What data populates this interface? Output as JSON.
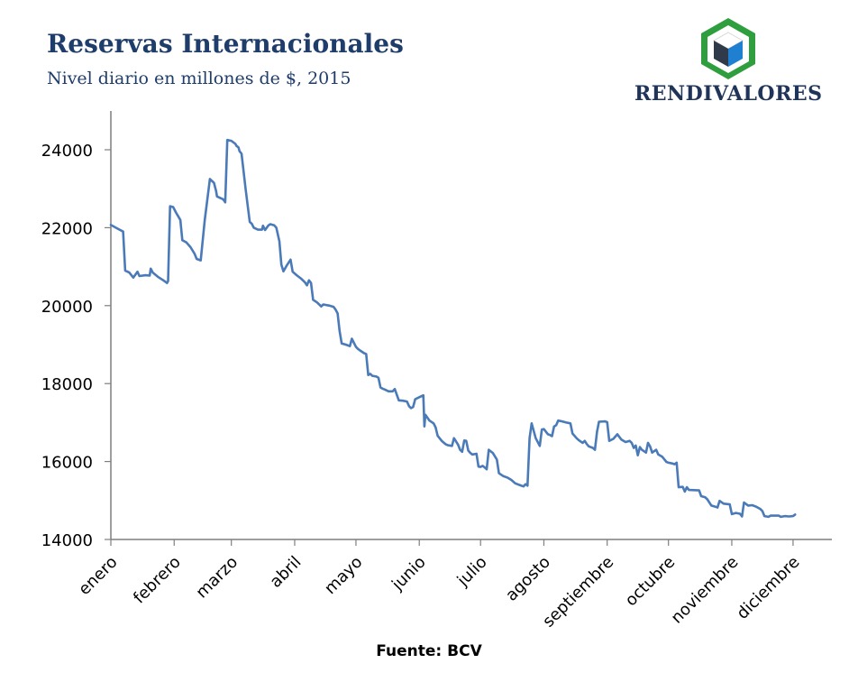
{
  "header": {
    "title": "Reservas Internacionales",
    "subtitle": "Nivel diario en millones de $, 2015",
    "brand": "RENDIVALORES",
    "logo_icon": "cube-logo-icon"
  },
  "footer": {
    "source": "Fuente: BCV"
  },
  "colors": {
    "line": "#4a7ab8",
    "title": "#1f3d6b",
    "logo_green": "#2e9e3e",
    "logo_blue": "#1f7fd1",
    "logo_dark": "#2f3a4a"
  },
  "chart_data": {
    "type": "line",
    "title": "",
    "xlabel": "",
    "ylabel": "",
    "ylim": [
      14000,
      25000
    ],
    "yticks": [
      14000,
      16000,
      18000,
      20000,
      22000,
      24000
    ],
    "grid": false,
    "legend": "none",
    "x_tick_labels": [
      "enero",
      "febrero",
      "marzo",
      "abril",
      "mayo",
      "junio",
      "julio",
      "agosto",
      "septiembre",
      "octubre",
      "noviembre",
      "diciembre"
    ],
    "x_tick_positions": [
      0,
      31,
      59,
      90,
      120,
      151,
      181,
      212,
      243,
      273,
      304,
      334
    ],
    "x_max": 353,
    "series": [
      {
        "name": "",
        "points": [
          [
            0,
            22070
          ],
          [
            6,
            21900
          ],
          [
            7,
            20900
          ],
          [
            9,
            20850
          ],
          [
            11,
            20720
          ],
          [
            13,
            20870
          ],
          [
            14,
            20760
          ],
          [
            17,
            20780
          ],
          [
            19,
            20770
          ],
          [
            19.5,
            20950
          ],
          [
            20.5,
            20850
          ],
          [
            23,
            20740
          ],
          [
            26,
            20640
          ],
          [
            27.5,
            20580
          ],
          [
            28,
            20630
          ],
          [
            29,
            22550
          ],
          [
            30.5,
            22530
          ],
          [
            32,
            22380
          ],
          [
            34,
            22200
          ],
          [
            35,
            21680
          ],
          [
            37,
            21620
          ],
          [
            39,
            21500
          ],
          [
            41,
            21330
          ],
          [
            42,
            21200
          ],
          [
            44,
            21160
          ],
          [
            46,
            22200
          ],
          [
            48.5,
            23250
          ],
          [
            50.5,
            23150
          ],
          [
            51.5,
            22950
          ],
          [
            52,
            22800
          ],
          [
            55,
            22730
          ],
          [
            56,
            22650
          ],
          [
            57,
            24250
          ],
          [
            59,
            24230
          ],
          [
            61,
            24150
          ],
          [
            61.5,
            24100
          ],
          [
            62.5,
            24060
          ],
          [
            63,
            23960
          ],
          [
            64,
            23900
          ],
          [
            66,
            22980
          ],
          [
            68,
            22150
          ],
          [
            69,
            22100
          ],
          [
            70,
            22000
          ],
          [
            72,
            21950
          ],
          [
            74,
            21950
          ],
          [
            74.5,
            22050
          ],
          [
            75.5,
            21940
          ],
          [
            77,
            22050
          ],
          [
            78,
            22090
          ],
          [
            80,
            22060
          ],
          [
            81,
            22000
          ],
          [
            82.5,
            21650
          ],
          [
            83.5,
            21050
          ],
          [
            84.5,
            20880
          ],
          [
            86,
            21020
          ],
          [
            88,
            21180
          ],
          [
            89,
            20870
          ],
          [
            91,
            20780
          ],
          [
            93,
            20700
          ],
          [
            95,
            20600
          ],
          [
            96,
            20520
          ],
          [
            97,
            20650
          ],
          [
            98,
            20580
          ],
          [
            99,
            20150
          ],
          [
            101,
            20080
          ],
          [
            103,
            19980
          ],
          [
            104,
            20030
          ],
          [
            107,
            20000
          ],
          [
            109,
            19970
          ],
          [
            110,
            19900
          ],
          [
            111,
            19800
          ],
          [
            112,
            19350
          ],
          [
            113,
            19030
          ],
          [
            115,
            19000
          ],
          [
            117,
            18960
          ],
          [
            118,
            19150
          ],
          [
            120,
            18940
          ],
          [
            121,
            18890
          ],
          [
            122,
            18850
          ],
          [
            124,
            18780
          ],
          [
            125,
            18760
          ],
          [
            126,
            18220
          ],
          [
            127,
            18250
          ],
          [
            128,
            18200
          ],
          [
            130,
            18180
          ],
          [
            131,
            18150
          ],
          [
            132,
            17900
          ],
          [
            133,
            17870
          ],
          [
            134,
            17850
          ],
          [
            136,
            17800
          ],
          [
            138,
            17800
          ],
          [
            139,
            17860
          ],
          [
            141,
            17570
          ],
          [
            143,
            17560
          ],
          [
            145,
            17540
          ],
          [
            146,
            17420
          ],
          [
            147,
            17370
          ],
          [
            148,
            17400
          ],
          [
            149,
            17600
          ],
          [
            151,
            17650
          ],
          [
            153,
            17700
          ],
          [
            153.5,
            16900
          ],
          [
            154,
            17200
          ],
          [
            156,
            17050
          ],
          [
            158,
            16980
          ],
          [
            159,
            16880
          ],
          [
            160,
            16660
          ],
          [
            162,
            16530
          ],
          [
            164,
            16440
          ],
          [
            165,
            16420
          ],
          [
            167,
            16400
          ],
          [
            168,
            16600
          ],
          [
            170,
            16430
          ],
          [
            171,
            16300
          ],
          [
            172,
            16250
          ],
          [
            173,
            16540
          ],
          [
            174,
            16530
          ],
          [
            175,
            16280
          ],
          [
            176,
            16220
          ],
          [
            177,
            16180
          ],
          [
            179,
            16200
          ],
          [
            180,
            15870
          ],
          [
            181,
            15860
          ],
          [
            182,
            15890
          ],
          [
            183,
            15850
          ],
          [
            184,
            15800
          ],
          [
            185,
            16300
          ],
          [
            187,
            16220
          ],
          [
            189,
            16050
          ],
          [
            190,
            15700
          ],
          [
            192,
            15630
          ],
          [
            194,
            15590
          ],
          [
            196,
            15530
          ],
          [
            198,
            15440
          ],
          [
            201,
            15380
          ],
          [
            202,
            15360
          ],
          [
            203,
            15420
          ],
          [
            204,
            15380
          ],
          [
            205,
            16600
          ],
          [
            206,
            16980
          ],
          [
            208,
            16600
          ],
          [
            210,
            16400
          ],
          [
            211,
            16820
          ],
          [
            212,
            16830
          ],
          [
            214,
            16700
          ],
          [
            215,
            16680
          ],
          [
            216,
            16650
          ],
          [
            217,
            16900
          ],
          [
            218,
            16930
          ],
          [
            219,
            17050
          ],
          [
            221,
            17030
          ],
          [
            223,
            17000
          ],
          [
            225,
            16980
          ],
          [
            226,
            16720
          ],
          [
            228,
            16600
          ],
          [
            229,
            16550
          ],
          [
            231,
            16480
          ],
          [
            232,
            16530
          ],
          [
            233,
            16450
          ],
          [
            234,
            16390
          ],
          [
            236,
            16350
          ],
          [
            237,
            16300
          ],
          [
            238,
            16760
          ],
          [
            239,
            17020
          ],
          [
            242,
            17030
          ],
          [
            243,
            17010
          ],
          [
            244,
            16530
          ],
          [
            246,
            16580
          ],
          [
            248,
            16700
          ],
          [
            250,
            16560
          ],
          [
            252,
            16500
          ],
          [
            254,
            16530
          ],
          [
            255,
            16480
          ],
          [
            256,
            16350
          ],
          [
            257,
            16410
          ],
          [
            258,
            16160
          ],
          [
            259,
            16370
          ],
          [
            260,
            16300
          ],
          [
            262,
            16230
          ],
          [
            263,
            16480
          ],
          [
            264,
            16390
          ],
          [
            265,
            16230
          ],
          [
            267,
            16300
          ],
          [
            268,
            16180
          ],
          [
            270,
            16120
          ],
          [
            272,
            15990
          ],
          [
            273,
            15970
          ],
          [
            275,
            15950
          ],
          [
            276,
            15930
          ],
          [
            277,
            15970
          ],
          [
            278,
            15340
          ],
          [
            280,
            15350
          ],
          [
            281,
            15230
          ],
          [
            282,
            15340
          ],
          [
            283,
            15270
          ],
          [
            288,
            15260
          ],
          [
            289,
            15110
          ],
          [
            291,
            15080
          ],
          [
            292,
            15030
          ],
          [
            294,
            14870
          ],
          [
            296,
            14840
          ],
          [
            297,
            14820
          ],
          [
            298,
            14990
          ],
          [
            300,
            14920
          ],
          [
            303,
            14900
          ],
          [
            304,
            14650
          ],
          [
            306,
            14680
          ],
          [
            308,
            14660
          ],
          [
            309,
            14590
          ],
          [
            310,
            14950
          ],
          [
            312,
            14870
          ],
          [
            314,
            14880
          ],
          [
            316,
            14840
          ],
          [
            318,
            14780
          ],
          [
            319,
            14730
          ],
          [
            320,
            14600
          ],
          [
            322,
            14580
          ],
          [
            323,
            14610
          ],
          [
            327,
            14610
          ],
          [
            328,
            14580
          ],
          [
            330,
            14600
          ],
          [
            332,
            14590
          ],
          [
            334,
            14600
          ],
          [
            335,
            14640
          ]
        ]
      }
    ]
  }
}
